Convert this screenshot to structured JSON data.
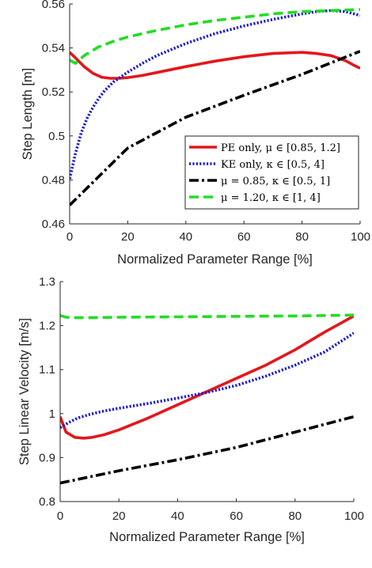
{
  "chart_data": [
    {
      "type": "line",
      "xlabel": "Normalized Parameter Range [%]",
      "ylabel": "Step Length [m]",
      "xlim": [
        0,
        100
      ],
      "ylim": [
        0.46,
        0.56
      ],
      "xticks": [
        "0",
        "20",
        "40",
        "60",
        "80",
        "100"
      ],
      "yticks": [
        "0.46",
        "0.48",
        "0.5",
        "0.52",
        "0.54",
        "0.56"
      ],
      "legend_position": "center-right",
      "series": [
        {
          "name": "PE only, μ ∈ [0.85, 1.2]",
          "color": "#e3171b",
          "style": "solid",
          "x": [
            0,
            2,
            5,
            8,
            11,
            14,
            17,
            20,
            25,
            30,
            40,
            50,
            60,
            70,
            80,
            85,
            90,
            95,
            98,
            100
          ],
          "y": [
            0.538,
            0.5355,
            0.5315,
            0.5285,
            0.5267,
            0.5262,
            0.5262,
            0.5265,
            0.5275,
            0.5288,
            0.5315,
            0.534,
            0.536,
            0.5375,
            0.538,
            0.5375,
            0.5365,
            0.5342,
            0.532,
            0.5308
          ]
        },
        {
          "name": "KE only, κ ∈ [0.5, 4]",
          "color": "#1a1ad6",
          "style": "dotted",
          "x": [
            0,
            2,
            4,
            6,
            8,
            10,
            12,
            15,
            20,
            25,
            30,
            40,
            50,
            60,
            70,
            80,
            85,
            90,
            95,
            100
          ],
          "y": [
            0.4805,
            0.492,
            0.5015,
            0.508,
            0.513,
            0.517,
            0.5205,
            0.5245,
            0.529,
            0.533,
            0.5365,
            0.542,
            0.5465,
            0.55,
            0.553,
            0.5555,
            0.5565,
            0.557,
            0.5565,
            0.5548
          ]
        },
        {
          "name": "μ = 0.85, κ ∈ [0.5, 1]",
          "color": "#000000",
          "style": "dashdot",
          "x": [
            0,
            20,
            40,
            60,
            80,
            100
          ],
          "y": [
            0.4685,
            0.4945,
            0.5085,
            0.5185,
            0.528,
            0.5385
          ]
        },
        {
          "name": "μ = 1.20, κ ∈ [1, 4]",
          "color": "#22dd22",
          "style": "dashed",
          "x": [
            0,
            2,
            5,
            10,
            15,
            20,
            30,
            40,
            50,
            60,
            70,
            80,
            90,
            100
          ],
          "y": [
            0.5345,
            0.533,
            0.5365,
            0.5405,
            0.543,
            0.545,
            0.548,
            0.5505,
            0.5525,
            0.554,
            0.5555,
            0.5565,
            0.557,
            0.5575
          ]
        }
      ]
    },
    {
      "type": "line",
      "xlabel": "Normalized Parameter Range [%]",
      "ylabel": "Step Linear Velocity [m/s]",
      "xlim": [
        0,
        100
      ],
      "ylim": [
        0.8,
        1.3
      ],
      "xticks": [
        "0",
        "20",
        "40",
        "60",
        "80",
        "100"
      ],
      "yticks": [
        "0.8",
        "0.9",
        "1",
        "1.1",
        "1.2",
        "1.3"
      ],
      "series": [
        {
          "name": "PE only",
          "color": "#e3171b",
          "style": "solid",
          "x": [
            0,
            2,
            5,
            8,
            11,
            15,
            20,
            30,
            40,
            50,
            60,
            70,
            80,
            90,
            100
          ],
          "y": [
            0.993,
            0.958,
            0.946,
            0.944,
            0.946,
            0.952,
            0.963,
            0.99,
            1.02,
            1.05,
            1.08,
            1.11,
            1.145,
            1.185,
            1.222
          ]
        },
        {
          "name": "KE only",
          "color": "#1a1ad6",
          "style": "dotted",
          "x": [
            0,
            3,
            6,
            10,
            15,
            20,
            30,
            40,
            50,
            60,
            70,
            80,
            90,
            100
          ],
          "y": [
            0.968,
            0.98,
            0.99,
            0.998,
            1.006,
            1.012,
            1.023,
            1.035,
            1.048,
            1.064,
            1.085,
            1.11,
            1.14,
            1.183
          ]
        },
        {
          "name": "μ = 0.85",
          "color": "#000000",
          "style": "dashdot",
          "x": [
            0,
            20,
            40,
            60,
            80,
            100
          ],
          "y": [
            0.842,
            0.87,
            0.895,
            0.923,
            0.958,
            0.993
          ]
        },
        {
          "name": "μ = 1.20",
          "color": "#22dd22",
          "style": "dashed",
          "x": [
            0,
            2,
            5,
            10,
            20,
            40,
            60,
            80,
            100
          ],
          "y": [
            1.223,
            1.219,
            1.218,
            1.218,
            1.219,
            1.22,
            1.221,
            1.222,
            1.224
          ]
        }
      ]
    }
  ]
}
